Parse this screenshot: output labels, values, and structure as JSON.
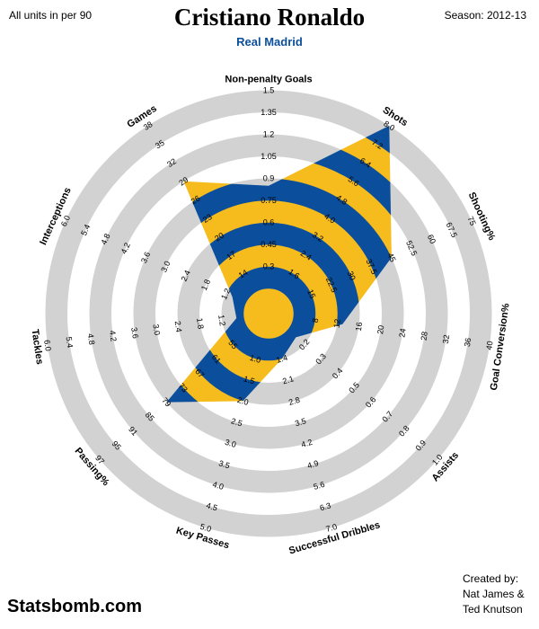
{
  "header": {
    "units_note": "All units in per 90",
    "player_name": "Cristiano Ronaldo",
    "team": "Real Madrid",
    "season": "Season: 2012-13"
  },
  "footer": {
    "brand": "Statsbomb.com",
    "credits": [
      "Created by:",
      "Nat James &",
      "Ted Knutson"
    ]
  },
  "colors": {
    "ring_grey": "#d2d2d2",
    "gold": "#f6bc1d",
    "blue": "#0b4f9c",
    "team_text": "#0b4f9c"
  },
  "chart_data": {
    "type": "radar",
    "axes": [
      {
        "label": "Non-penalty Goals",
        "ticks": [
          "0.3",
          "0.45",
          "0.6",
          "0.75",
          "0.9",
          "1.05",
          "1.2",
          "1.35",
          "1.5"
        ],
        "value": 0.85
      },
      {
        "label": "Shots",
        "ticks": [
          "1.6",
          "2.4",
          "3.2",
          "4.0",
          "4.8",
          "5.6",
          "6.4",
          "7.2",
          "8.0"
        ],
        "value": 8.0
      },
      {
        "label": "Shooting%",
        "ticks": [
          "15",
          "22.5",
          "30",
          "37.5",
          "45",
          "52.5",
          "60",
          "67.5",
          "75"
        ],
        "value": 45
      },
      {
        "label": "Goal Conversion%",
        "ticks": [
          "8",
          "12",
          "16",
          "20",
          "24",
          "28",
          "32",
          "36",
          "40"
        ],
        "value": 13
      },
      {
        "label": "Assists",
        "ticks": [
          "0.2",
          "0.3",
          "0.4",
          "0.5",
          "0.6",
          "0.7",
          "0.8",
          "0.9",
          "1.0"
        ],
        "value": 0.15
      },
      {
        "label": "Successful Dribbles",
        "ticks": [
          "1.4",
          "2.1",
          "2.8",
          "3.5",
          "4.2",
          "4.9",
          "5.6",
          "6.3",
          "7.0"
        ],
        "value": 1.4
      },
      {
        "label": "Key Passes",
        "ticks": [
          "1.0",
          "1.5",
          "2.0",
          "2.5",
          "3.0",
          "3.5",
          "4.0",
          "4.5",
          "5.0"
        ],
        "value": 2.0
      },
      {
        "label": "Passing%",
        "ticks": [
          "55",
          "61",
          "67",
          "73",
          "79",
          "85",
          "91",
          "95",
          "97"
        ],
        "value": 79
      },
      {
        "label": "Tackles",
        "ticks": [
          "1.2",
          "1.8",
          "2.4",
          "3.0",
          "3.6",
          "4.2",
          "4.8",
          "5.4",
          "6.0"
        ],
        "value": 0.8
      },
      {
        "label": "Interceptions",
        "ticks": [
          "1.2",
          "1.8",
          "2.4",
          "3.0",
          "3.6",
          "4.2",
          "4.8",
          "5.4",
          "6.0"
        ],
        "value": 1.0
      },
      {
        "label": "Games",
        "ticks": [
          "14",
          "17",
          "20",
          "23",
          "26",
          "29",
          "32",
          "35",
          "38"
        ],
        "value": 29
      }
    ]
  }
}
